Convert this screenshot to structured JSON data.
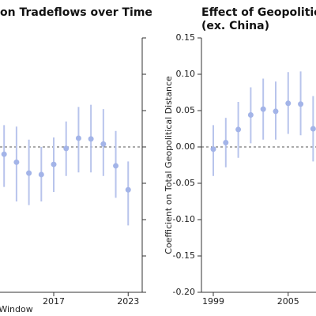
{
  "chart_data": [
    {
      "type": "errorbar",
      "title": "on Tradeflows over Time",
      "x_label": "Window",
      "x": [
        2013,
        2014,
        2015,
        2016,
        2017,
        2018,
        2019,
        2020,
        2021,
        2022,
        2023
      ],
      "values": [
        -0.01,
        -0.021,
        -0.036,
        -0.038,
        -0.024,
        -0.002,
        0.012,
        0.011,
        0.004,
        -0.026,
        -0.059
      ],
      "lower": [
        -0.055,
        -0.075,
        -0.08,
        -0.075,
        -0.062,
        -0.04,
        -0.035,
        -0.035,
        -0.04,
        -0.07,
        -0.108
      ],
      "upper": [
        0.03,
        0.028,
        0.01,
        0.0,
        0.013,
        0.035,
        0.055,
        0.058,
        0.052,
        0.022,
        -0.02
      ],
      "color": "#a3b4e8",
      "xlim": [
        2012.67,
        2024.13
      ],
      "xticks": [
        2017,
        2023
      ],
      "ylim": [
        -0.2,
        0.15
      ],
      "yticks": [
        -0.2,
        -0.15,
        -0.1,
        -0.05,
        0,
        0.05,
        0.1,
        0.15
      ],
      "y_axis_side": "right",
      "ytick_labels_shown": false,
      "zero_line": true
    },
    {
      "type": "errorbar",
      "title": "Effect of Geopolitic",
      "subtitle": "(ex. China)",
      "y_label": "Coefficient on Total Geopolitical Distance",
      "x": [
        1999,
        2000,
        2001,
        2002,
        2003,
        2004,
        2005,
        2006,
        2007
      ],
      "values": [
        -0.003,
        0.006,
        0.024,
        0.044,
        0.052,
        0.049,
        0.06,
        0.059,
        0.025
      ],
      "lower": [
        -0.04,
        -0.028,
        -0.015,
        0.005,
        0.01,
        0.01,
        0.018,
        0.016,
        -0.02
      ],
      "upper": [
        0.03,
        0.04,
        0.062,
        0.082,
        0.094,
        0.09,
        0.103,
        0.104,
        0.07
      ],
      "color": "#a3b4e8",
      "xlim": [
        1998.05,
        2007.23
      ],
      "xticks": [
        1999,
        2005
      ],
      "ylim": [
        -0.2,
        0.15
      ],
      "yticks": [
        {
          "value": -0.2,
          "label": "-0.20"
        },
        {
          "value": -0.15,
          "label": "-0.15"
        },
        {
          "value": -0.1,
          "label": "-0.10"
        },
        {
          "value": -0.05,
          "label": "-0.05"
        },
        {
          "value": 0,
          "label": "0.00"
        },
        {
          "value": 0.05,
          "label": "0.05"
        },
        {
          "value": 0.1,
          "label": "0.10"
        },
        {
          "value": 0.15,
          "label": "0.15"
        }
      ],
      "y_axis_side": "left",
      "ytick_labels_shown": true,
      "zero_line": true
    }
  ]
}
